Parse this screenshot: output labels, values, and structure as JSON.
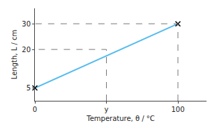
{
  "chart_data": {
    "type": "line",
    "xlabel": "Temperature, θ / °C",
    "ylabel": "Length, L / cm",
    "series": [
      {
        "type": "line",
        "color": "#55bbee",
        "x": [
          0,
          100
        ],
        "values": [
          5.0,
          30.0
        ]
      },
      {
        "type": "scatter",
        "marker": "x",
        "color": "#000000",
        "x": [
          0,
          100
        ],
        "values": [
          5.0,
          30.0
        ]
      },
      {
        "type": "line",
        "line_style": "dashed",
        "color": "#777777",
        "x": [
          50,
          50,
          0
        ],
        "values": [
          0,
          20.0,
          20.0
        ]
      },
      {
        "type": "line",
        "line_style": "dashed",
        "color": "#777777",
        "x": [
          100,
          100,
          0
        ],
        "values": [
          0,
          30.0,
          30.0
        ]
      }
    ],
    "xlim": [
      0,
      120
    ],
    "ylim": [
      0,
      36
    ],
    "xticks": [
      0,
      {
        "value": 50,
        "label": "y"
      },
      100
    ],
    "yticks": [
      5.0,
      20.0,
      30.0
    ],
    "grid": false
  }
}
